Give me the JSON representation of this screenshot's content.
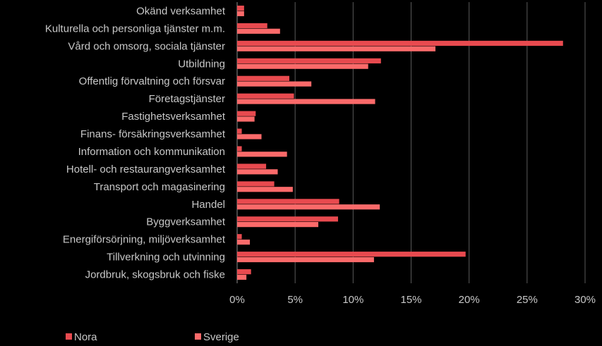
{
  "chart_data": {
    "type": "bar",
    "orientation": "horizontal",
    "categories": [
      "Okänd verksamhet",
      "Kulturella och personliga tjänster m.m.",
      "Vård och omsorg, sociala tjänster",
      "Utbildning",
      "Offentlig förvaltning och försvar",
      "Företagstjänster",
      "Fastighetsverksamhet",
      "Finans- försäkringsverksamhet",
      "Information och kommunikation",
      "Hotell- och restaurangverksamhet",
      "Transport och magasinering",
      "Handel",
      "Byggverksamhet",
      "Energiförsörjning, miljöverksamhet",
      "Tillverkning och utvinning",
      "Jordbruk, skogsbruk och fiske"
    ],
    "series": [
      {
        "name": "Nora",
        "color": "#e84a4f",
        "values": [
          0.6,
          2.6,
          28.1,
          12.4,
          4.5,
          4.9,
          1.6,
          0.4,
          0.4,
          2.5,
          3.2,
          8.8,
          8.7,
          0.4,
          19.7,
          1.2
        ]
      },
      {
        "name": "Sverige",
        "color": "#fb6a6a",
        "values": [
          0.6,
          3.7,
          17.1,
          11.3,
          6.4,
          11.9,
          1.5,
          2.1,
          4.3,
          3.5,
          4.8,
          12.3,
          7.0,
          1.1,
          11.8,
          0.8
        ]
      }
    ],
    "xlim": [
      0,
      30
    ],
    "xticks": [
      "0%",
      "5%",
      "10%",
      "15%",
      "20%",
      "25%",
      "30%"
    ],
    "grid": true,
    "legend_position": "bottom"
  }
}
